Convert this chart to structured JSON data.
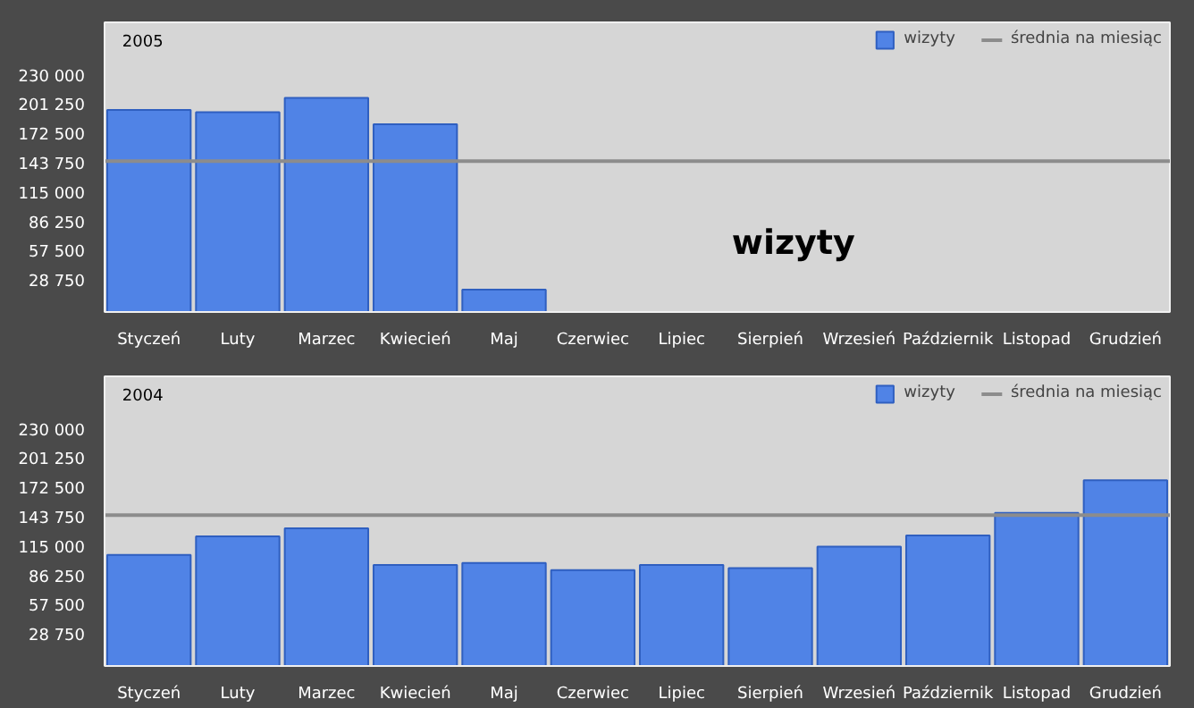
{
  "chart_data": [
    {
      "type": "bar",
      "title": "2005",
      "categories": [
        "Styczeń",
        "Luty",
        "Marzec",
        "Kwiecień",
        "Maj",
        "Czerwiec",
        "Lipiec",
        "Sierpień",
        "Wrzesień",
        "Październik",
        "Listopad",
        "Grudzień"
      ],
      "series": [
        {
          "name": "wizyty",
          "color": "#5083e6",
          "values": [
            198000,
            196000,
            210000,
            184000,
            22000,
            null,
            null,
            null,
            null,
            null,
            null,
            null
          ]
        }
      ],
      "ylim": [
        0,
        284000
      ],
      "yticks": [
        {
          "value": 28750,
          "label": "28 750"
        },
        {
          "value": 57500,
          "label": "57 500"
        },
        {
          "value": 86250,
          "label": "86 250"
        },
        {
          "value": 115000,
          "label": "115 000"
        },
        {
          "value": 143750,
          "label": "143 750"
        },
        {
          "value": 172500,
          "label": "172 500"
        },
        {
          "value": 201250,
          "label": "201 250"
        },
        {
          "value": 230000,
          "label": "230 000"
        }
      ],
      "ref_lines": [
        {
          "axis": "y",
          "value": 148000,
          "label": "średnia na miesiąc",
          "color": "#8c8c8c"
        }
      ],
      "annotations": [
        "wizyty"
      ],
      "legend": "top right",
      "grid": false
    },
    {
      "type": "bar",
      "title": "2004",
      "categories": [
        "Styczeń",
        "Luty",
        "Marzec",
        "Kwiecień",
        "Maj",
        "Czerwiec",
        "Lipiec",
        "Sierpień",
        "Wrzesień",
        "Październik",
        "Listopad",
        "Grudzień"
      ],
      "series": [
        {
          "name": "wizyty",
          "color": "#5083e6",
          "values": [
            109000,
            127000,
            135000,
            99000,
            101000,
            94000,
            99000,
            96000,
            117000,
            128000,
            150000,
            182000
          ]
        }
      ],
      "ylim": [
        0,
        284000
      ],
      "yticks": [
        {
          "value": 28750,
          "label": "28 750"
        },
        {
          "value": 57500,
          "label": "57 500"
        },
        {
          "value": 86250,
          "label": "86 250"
        },
        {
          "value": 115000,
          "label": "115 000"
        },
        {
          "value": 143750,
          "label": "143 750"
        },
        {
          "value": 172500,
          "label": "172 500"
        },
        {
          "value": 201250,
          "label": "201 250"
        },
        {
          "value": 230000,
          "label": "230 000"
        }
      ],
      "ref_lines": [
        {
          "axis": "y",
          "value": 148000,
          "label": "średnia na miesiąc",
          "color": "#8c8c8c"
        }
      ],
      "legend": "top right",
      "grid": false
    }
  ]
}
